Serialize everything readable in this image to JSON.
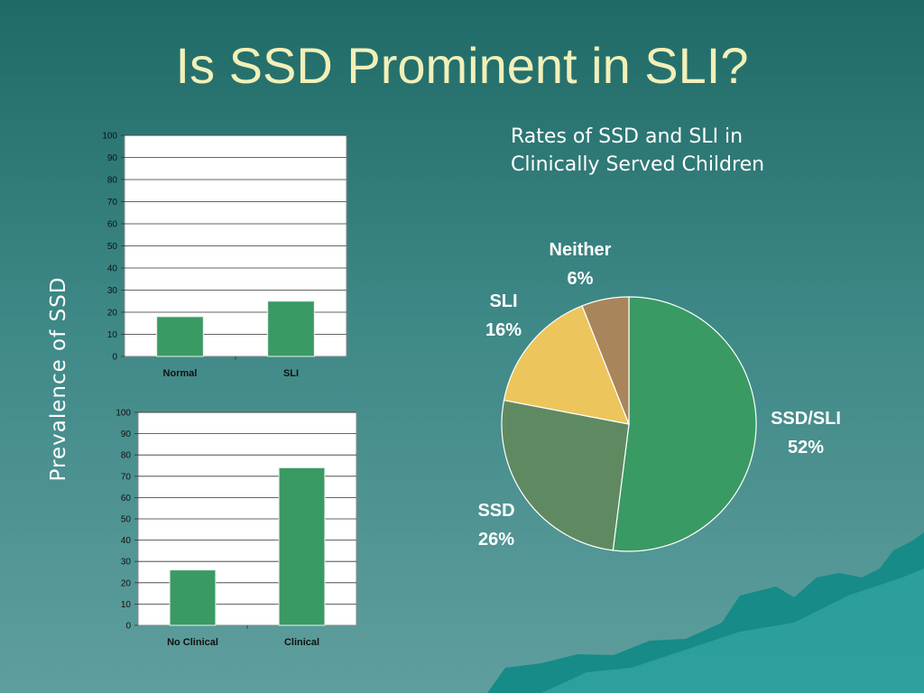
{
  "slide": {
    "title": "Is SSD Prominent in SLI?",
    "y_axis_label": "Prevalence of SSD",
    "pie_caption_line1": "Rates of SSD and SLI in",
    "pie_caption_line2": "Clinically Served Children"
  },
  "chart_data": [
    {
      "type": "bar",
      "categories": [
        "Normal",
        "SLI"
      ],
      "values": [
        18,
        25
      ],
      "ylim": [
        0,
        100
      ],
      "yticks": [
        "0",
        "10",
        "20",
        "30",
        "40",
        "50",
        "60",
        "70",
        "80",
        "90",
        "100"
      ],
      "grid": true,
      "bar_color": "#3a9a63"
    },
    {
      "type": "bar",
      "categories": [
        "No Clinical",
        "Clinical"
      ],
      "values": [
        26,
        74
      ],
      "ylim": [
        0,
        100
      ],
      "yticks": [
        "0",
        "10",
        "20",
        "30",
        "40",
        "50",
        "60",
        "70",
        "80",
        "90",
        "100"
      ],
      "grid": true,
      "bar_color": "#3a9a63"
    },
    {
      "type": "pie",
      "title": "Rates of SSD and SLI in Clinically Served Children",
      "slices": [
        {
          "label": "SSD/SLI",
          "value": 52,
          "pct_text": "52%",
          "color": "#3a9a63"
        },
        {
          "label": "SSD",
          "value": 26,
          "pct_text": "26%",
          "color": "#5f8a61"
        },
        {
          "label": "SLI",
          "value": 16,
          "pct_text": "16%",
          "color": "#ecc55c"
        },
        {
          "label": "Neither",
          "value": 6,
          "pct_text": "6%",
          "color": "#a8855a"
        }
      ]
    }
  ]
}
